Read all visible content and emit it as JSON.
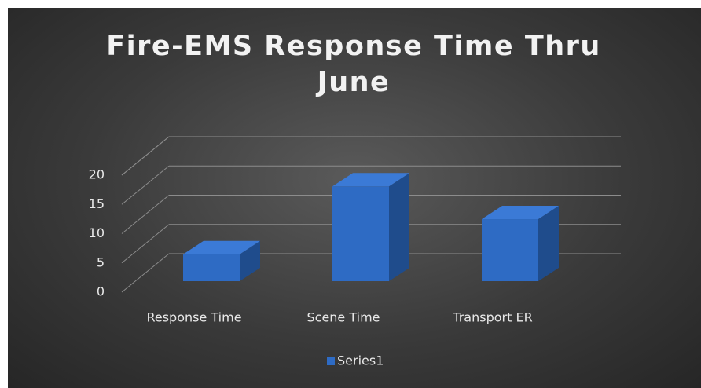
{
  "chart_data": {
    "type": "bar3d",
    "title": "Fire-EMS Response Time Thru June",
    "categories": [
      "Response Time",
      "Scene Time",
      "Transport ER"
    ],
    "series": [
      {
        "name": "Series1",
        "color": "#2e6bc4",
        "values": [
          4.6,
          16.2,
          10.6
        ]
      }
    ],
    "ylim": [
      0,
      20
    ],
    "yticks": [
      0,
      5,
      10,
      15,
      20
    ],
    "grid": true,
    "legend": "bottom"
  }
}
